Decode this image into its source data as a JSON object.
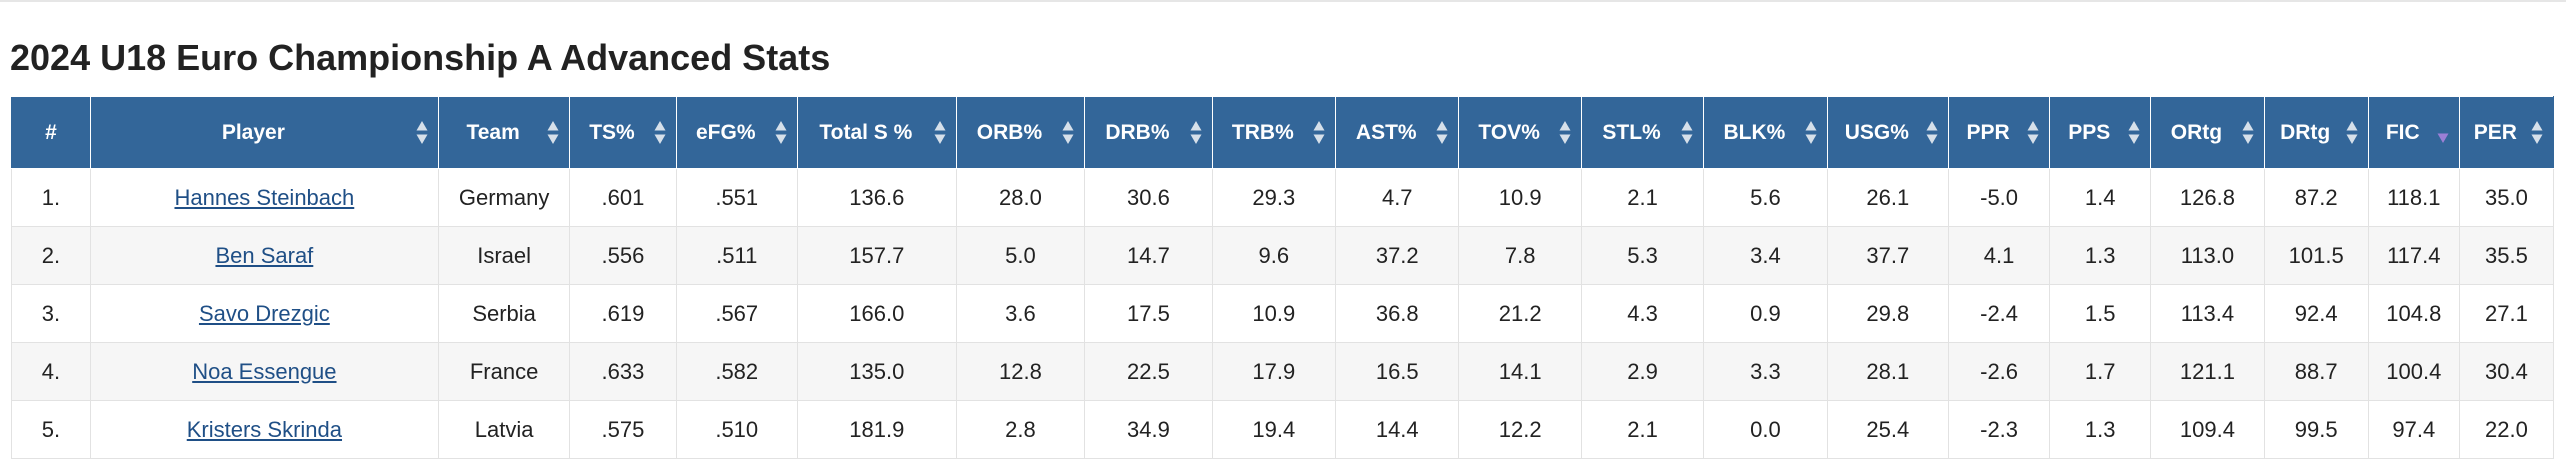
{
  "page": {
    "title": "2024 U18 Euro Championship A Advanced Stats"
  },
  "colors": {
    "header_bg": "#336699",
    "header_text": "#ffffff",
    "sort_icon_idle": "#d6e0ea",
    "sort_icon_active": "#9b7fd6",
    "link": "#1f4f86",
    "row_alt": "#f6f6f6"
  },
  "table": {
    "sorted_column": "FIC",
    "sort_direction": "descending",
    "columns": [
      {
        "key": "rank",
        "label": "#",
        "sortable": false
      },
      {
        "key": "player",
        "label": "Player",
        "sortable": true
      },
      {
        "key": "team",
        "label": "Team",
        "sortable": true
      },
      {
        "key": "ts",
        "label": "TS%",
        "sortable": true
      },
      {
        "key": "efg",
        "label": "eFG%",
        "sortable": true
      },
      {
        "key": "total_s",
        "label": "Total S %",
        "sortable": true
      },
      {
        "key": "orb",
        "label": "ORB%",
        "sortable": true
      },
      {
        "key": "drb",
        "label": "DRB%",
        "sortable": true
      },
      {
        "key": "trb",
        "label": "TRB%",
        "sortable": true
      },
      {
        "key": "ast",
        "label": "AST%",
        "sortable": true
      },
      {
        "key": "tov",
        "label": "TOV%",
        "sortable": true
      },
      {
        "key": "stl",
        "label": "STL%",
        "sortable": true
      },
      {
        "key": "blk",
        "label": "BLK%",
        "sortable": true
      },
      {
        "key": "usg",
        "label": "USG%",
        "sortable": true
      },
      {
        "key": "ppr",
        "label": "PPR",
        "sortable": true
      },
      {
        "key": "pps",
        "label": "PPS",
        "sortable": true
      },
      {
        "key": "ortg",
        "label": "ORtg",
        "sortable": true
      },
      {
        "key": "drtg",
        "label": "DRtg",
        "sortable": true
      },
      {
        "key": "fic",
        "label": "FIC",
        "sortable": true
      },
      {
        "key": "per",
        "label": "PER",
        "sortable": true
      }
    ],
    "rows": [
      {
        "rank": "1.",
        "player": "Hannes Steinbach",
        "team": "Germany",
        "ts": ".601",
        "efg": ".551",
        "total_s": "136.6",
        "orb": "28.0",
        "drb": "30.6",
        "trb": "29.3",
        "ast": "4.7",
        "tov": "10.9",
        "stl": "2.1",
        "blk": "5.6",
        "usg": "26.1",
        "ppr": "-5.0",
        "pps": "1.4",
        "ortg": "126.8",
        "drtg": "87.2",
        "fic": "118.1",
        "per": "35.0"
      },
      {
        "rank": "2.",
        "player": "Ben Saraf",
        "team": "Israel",
        "ts": ".556",
        "efg": ".511",
        "total_s": "157.7",
        "orb": "5.0",
        "drb": "14.7",
        "trb": "9.6",
        "ast": "37.2",
        "tov": "7.8",
        "stl": "5.3",
        "blk": "3.4",
        "usg": "37.7",
        "ppr": "4.1",
        "pps": "1.3",
        "ortg": "113.0",
        "drtg": "101.5",
        "fic": "117.4",
        "per": "35.5"
      },
      {
        "rank": "3.",
        "player": "Savo Drezgic",
        "team": "Serbia",
        "ts": ".619",
        "efg": ".567",
        "total_s": "166.0",
        "orb": "3.6",
        "drb": "17.5",
        "trb": "10.9",
        "ast": "36.8",
        "tov": "21.2",
        "stl": "4.3",
        "blk": "0.9",
        "usg": "29.8",
        "ppr": "-2.4",
        "pps": "1.5",
        "ortg": "113.4",
        "drtg": "92.4",
        "fic": "104.8",
        "per": "27.1"
      },
      {
        "rank": "4.",
        "player": "Noa Essengue",
        "team": "France",
        "ts": ".633",
        "efg": ".582",
        "total_s": "135.0",
        "orb": "12.8",
        "drb": "22.5",
        "trb": "17.9",
        "ast": "16.5",
        "tov": "14.1",
        "stl": "2.9",
        "blk": "3.3",
        "usg": "28.1",
        "ppr": "-2.6",
        "pps": "1.7",
        "ortg": "121.1",
        "drtg": "88.7",
        "fic": "100.4",
        "per": "30.4"
      },
      {
        "rank": "5.",
        "player": "Kristers Skrinda",
        "team": "Latvia",
        "ts": ".575",
        "efg": ".510",
        "total_s": "181.9",
        "orb": "2.8",
        "drb": "34.9",
        "trb": "19.4",
        "ast": "14.4",
        "tov": "12.2",
        "stl": "2.1",
        "blk": "0.0",
        "usg": "25.4",
        "ppr": "-2.3",
        "pps": "1.3",
        "ortg": "109.4",
        "drtg": "99.5",
        "fic": "97.4",
        "per": "22.0"
      }
    ]
  }
}
